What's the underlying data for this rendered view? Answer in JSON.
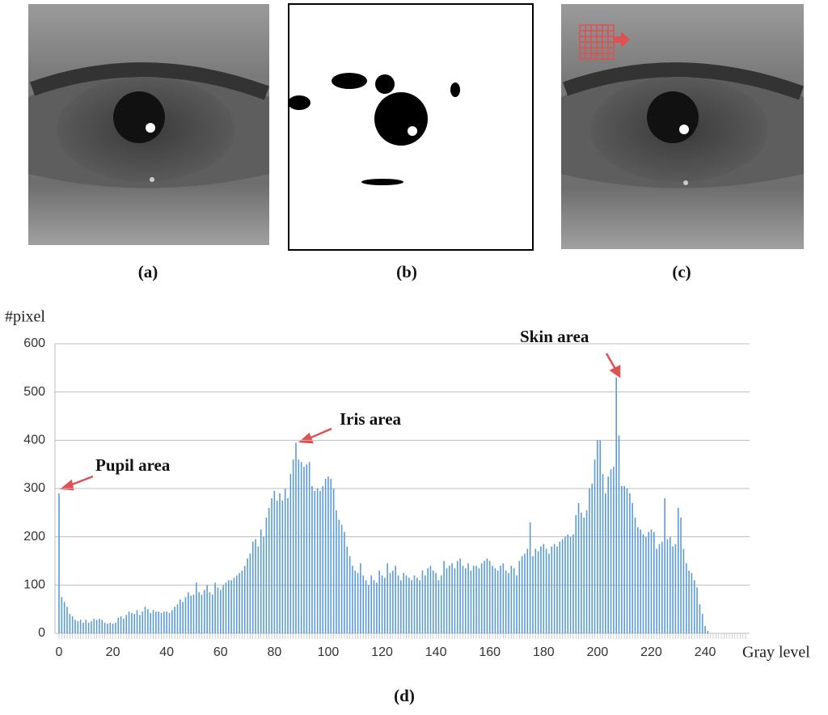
{
  "panel_labels": [
    "(a)",
    "(b)",
    "(c)"
  ],
  "chart_data": {
    "type": "bar",
    "label": "(d)",
    "ylabel": "#pixel",
    "xlabel": "Gray level",
    "color": "#5b9bd5",
    "grid": true,
    "annotations": [
      "Pupil area",
      "Iris area",
      "Skin area"
    ],
    "xlim": [
      -1.5,
      256.5
    ],
    "ylim": [
      0,
      600
    ],
    "xticks": [
      0,
      20,
      40,
      60,
      80,
      100,
      120,
      140,
      160,
      180,
      200,
      220,
      240
    ],
    "yticks": [
      0,
      100,
      200,
      300,
      400,
      500,
      600
    ],
    "x": [
      0,
      1,
      2,
      3,
      4,
      5,
      6,
      7,
      8,
      9,
      10,
      11,
      12,
      13,
      14,
      15,
      16,
      17,
      18,
      19,
      20,
      21,
      22,
      23,
      24,
      25,
      26,
      27,
      28,
      29,
      30,
      31,
      32,
      33,
      34,
      35,
      36,
      37,
      38,
      39,
      40,
      41,
      42,
      43,
      44,
      45,
      46,
      47,
      48,
      49,
      50,
      51,
      52,
      53,
      54,
      55,
      56,
      57,
      58,
      59,
      60,
      61,
      62,
      63,
      64,
      65,
      66,
      67,
      68,
      69,
      70,
      71,
      72,
      73,
      74,
      75,
      76,
      77,
      78,
      79,
      80,
      81,
      82,
      83,
      84,
      85,
      86,
      87,
      88,
      89,
      90,
      91,
      92,
      93,
      94,
      95,
      96,
      97,
      98,
      99,
      100,
      101,
      102,
      103,
      104,
      105,
      106,
      107,
      108,
      109,
      110,
      111,
      112,
      113,
      114,
      115,
      116,
      117,
      118,
      119,
      120,
      121,
      122,
      123,
      124,
      125,
      126,
      127,
      128,
      129,
      130,
      131,
      132,
      133,
      134,
      135,
      136,
      137,
      138,
      139,
      140,
      141,
      142,
      143,
      144,
      145,
      146,
      147,
      148,
      149,
      150,
      151,
      152,
      153,
      154,
      155,
      156,
      157,
      158,
      159,
      160,
      161,
      162,
      163,
      164,
      165,
      166,
      167,
      168,
      169,
      170,
      171,
      172,
      173,
      174,
      175,
      176,
      177,
      178,
      179,
      180,
      181,
      182,
      183,
      184,
      185,
      186,
      187,
      188,
      189,
      190,
      191,
      192,
      193,
      194,
      195,
      196,
      197,
      198,
      199,
      200,
      201,
      202,
      203,
      204,
      205,
      206,
      207,
      208,
      209,
      210,
      211,
      212,
      213,
      214,
      215,
      216,
      217,
      218,
      219,
      220,
      221,
      222,
      223,
      224,
      225,
      226,
      227,
      228,
      229,
      230,
      231,
      232,
      233,
      234,
      235,
      236,
      237,
      238,
      239,
      240,
      241,
      242,
      243,
      244,
      245,
      246,
      247,
      248,
      249,
      250,
      251,
      252,
      253,
      254,
      255
    ],
    "values": [
      290,
      75,
      65,
      55,
      40,
      35,
      28,
      25,
      28,
      22,
      28,
      22,
      25,
      30,
      28,
      30,
      28,
      22,
      20,
      22,
      20,
      22,
      32,
      35,
      30,
      38,
      45,
      42,
      40,
      48,
      38,
      45,
      55,
      50,
      42,
      48,
      45,
      45,
      42,
      45,
      45,
      42,
      48,
      55,
      60,
      70,
      65,
      75,
      85,
      78,
      80,
      105,
      85,
      80,
      90,
      100,
      85,
      80,
      105,
      95,
      90,
      100,
      105,
      110,
      110,
      115,
      120,
      125,
      130,
      140,
      155,
      165,
      190,
      195,
      180,
      215,
      200,
      240,
      260,
      280,
      295,
      275,
      290,
      275,
      300,
      280,
      330,
      360,
      395,
      360,
      355,
      345,
      350,
      355,
      305,
      295,
      300,
      295,
      305,
      320,
      325,
      320,
      300,
      255,
      235,
      225,
      210,
      180,
      160,
      140,
      130,
      125,
      145,
      120,
      110,
      100,
      120,
      110,
      105,
      130,
      120,
      115,
      145,
      125,
      130,
      140,
      120,
      110,
      125,
      120,
      115,
      110,
      120,
      115,
      110,
      130,
      120,
      135,
      140,
      130,
      125,
      110,
      120,
      150,
      135,
      140,
      145,
      135,
      150,
      155,
      140,
      135,
      145,
      130,
      140,
      140,
      135,
      145,
      150,
      155,
      150,
      140,
      135,
      130,
      140,
      145,
      130,
      125,
      140,
      135,
      120,
      150,
      160,
      165,
      175,
      230,
      160,
      175,
      170,
      180,
      185,
      175,
      165,
      180,
      185,
      180,
      190,
      195,
      200,
      205,
      200,
      205,
      245,
      270,
      250,
      240,
      255,
      300,
      310,
      360,
      400,
      400,
      330,
      290,
      325,
      340,
      345,
      530,
      410,
      305,
      305,
      300,
      290,
      270,
      240,
      220,
      215,
      205,
      200,
      210,
      215,
      210,
      175,
      185,
      190,
      280,
      195,
      200,
      180,
      185,
      260,
      240,
      175,
      145,
      130,
      125,
      110,
      95,
      60,
      40,
      15,
      5,
      0,
      0,
      0,
      0,
      0,
      0,
      0,
      0,
      0,
      0,
      0,
      0,
      0,
      0
    ]
  }
}
